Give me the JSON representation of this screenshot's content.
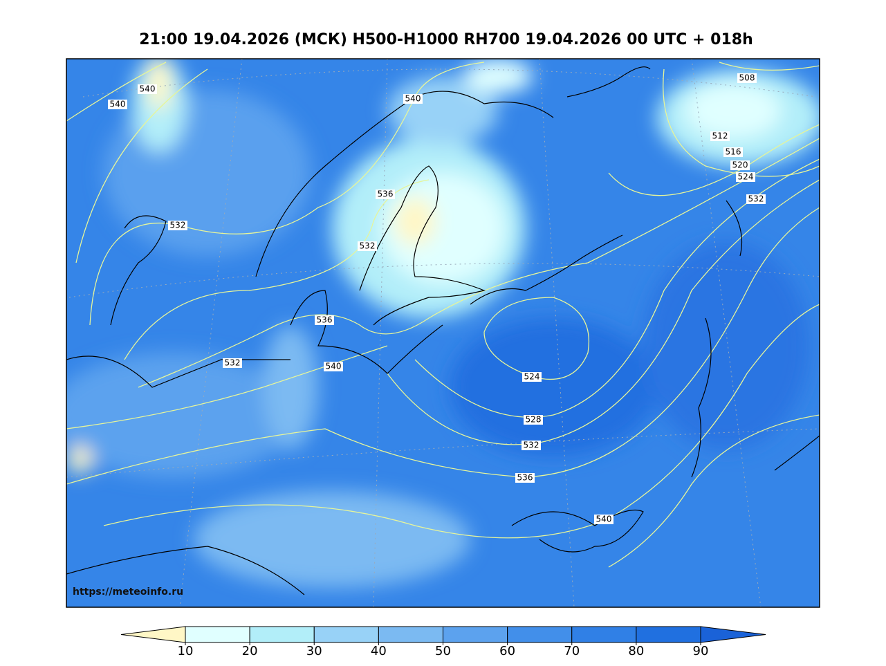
{
  "header": {
    "title": "21:00 19.04.2026 (МСК) H500-H1000 RH700 19.04.2026 00 UTC + 018h"
  },
  "map": {
    "watermark": "https://meteoinfo.ru",
    "contour_labels": [
      540,
      540,
      540,
      508,
      512,
      516,
      520,
      524,
      532,
      536,
      532,
      532,
      536,
      532,
      540,
      524,
      528,
      532,
      536,
      540
    ]
  },
  "colorbar": {
    "ticks": [
      10,
      20,
      30,
      40,
      50,
      60,
      70,
      80,
      90
    ],
    "colors": [
      "#fff7c6",
      "#e0ffff",
      "#b2eef9",
      "#98d2f7",
      "#7bbaf2",
      "#5ca2ee",
      "#428fea",
      "#3080e6",
      "#2070e0",
      "#1a62d8"
    ]
  }
}
